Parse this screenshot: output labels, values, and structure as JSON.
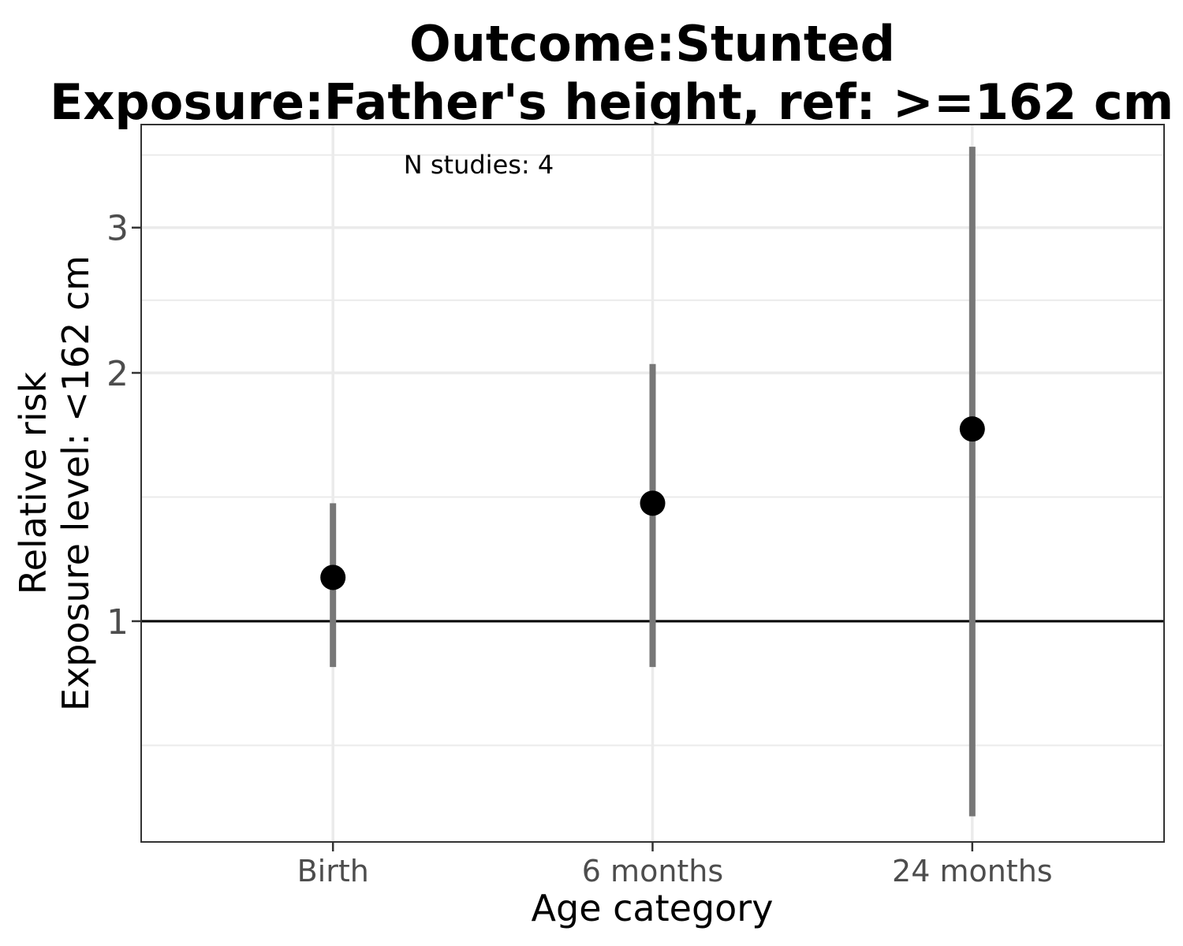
{
  "chart_data": {
    "type": "scatter",
    "title": "Outcome:Stunted",
    "subtitle": "Exposure:Father's height, ref: >=162 cm",
    "xlabel": "Age category",
    "ylabel": [
      "Relative risk",
      "Exposure level: <162 cm"
    ],
    "categories": [
      "Birth",
      "6 months",
      "24 months"
    ],
    "estimates": [
      1.13,
      1.39,
      1.71
    ],
    "ci_lower": [
      0.88,
      0.88,
      0.58
    ],
    "ci_upper": [
      1.39,
      2.05,
      3.76
    ],
    "y_scale": "log",
    "yticks": [
      1,
      2,
      3
    ],
    "ylim": [
      0.54,
      4.0
    ],
    "reference_line": 1,
    "annotation": "N studies: 4",
    "grid": true,
    "colors": {
      "point": "#000000",
      "ci": "#777777",
      "grid": "#ebebeb",
      "border": "#333333",
      "ref_line": "#000000"
    }
  }
}
